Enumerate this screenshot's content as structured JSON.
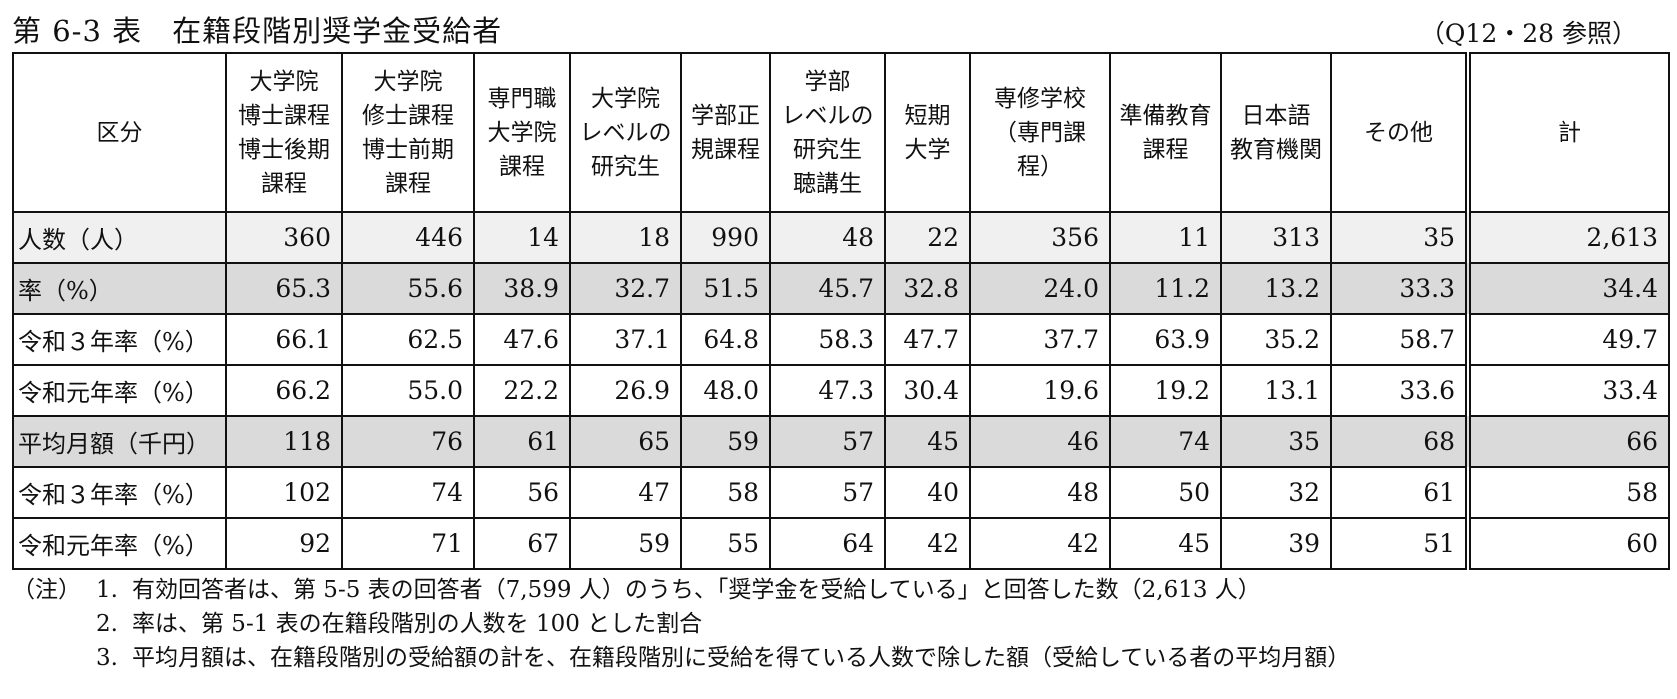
{
  "title": "第 6-3 表　在籍段階別奨学金受給者",
  "reference": "（Q12・28 参照）",
  "table": {
    "headers": [
      "区分",
      "大学院\n博士課程\n博士後期\n課程",
      "大学院\n修士課程\n博士前期\n課程",
      "専門職\n大学院\n課程",
      "大学院\nレベルの\n研究生",
      "学部正\n規課程",
      "学部\nレベルの\n研究生\n聴講生",
      "短期\n大学",
      "専修学校\n（専門課\n程）",
      "準備教育\n課程",
      "日本語\n教育機関",
      "その他",
      "計"
    ],
    "rows": [
      {
        "label": "人数（人）",
        "values": [
          "360",
          "446",
          "14",
          "18",
          "990",
          "48",
          "22",
          "356",
          "11",
          "313",
          "35",
          "2,613"
        ]
      },
      {
        "label": "率（%）",
        "values": [
          "65.3",
          "55.6",
          "38.9",
          "32.7",
          "51.5",
          "45.7",
          "32.8",
          "24.0",
          "11.2",
          "13.2",
          "33.3",
          "34.4"
        ]
      },
      {
        "label": "令和３年率（%）",
        "values": [
          "66.1",
          "62.5",
          "47.6",
          "37.1",
          "64.8",
          "58.3",
          "47.7",
          "37.7",
          "63.9",
          "35.2",
          "58.7",
          "49.7"
        ]
      },
      {
        "label": "令和元年率（%）",
        "values": [
          "66.2",
          "55.0",
          "22.2",
          "26.9",
          "48.0",
          "47.3",
          "30.4",
          "19.6",
          "19.2",
          "13.1",
          "33.6",
          "33.4"
        ]
      },
      {
        "label": "平均月額（千円）",
        "values": [
          "118",
          "76",
          "61",
          "65",
          "59",
          "57",
          "45",
          "46",
          "74",
          "35",
          "68",
          "66"
        ]
      },
      {
        "label": "令和３年率（%）",
        "values": [
          "102",
          "74",
          "56",
          "47",
          "58",
          "57",
          "40",
          "48",
          "50",
          "32",
          "61",
          "58"
        ]
      },
      {
        "label": "令和元年率（%）",
        "values": [
          "92",
          "71",
          "67",
          "59",
          "55",
          "64",
          "42",
          "42",
          "45",
          "39",
          "51",
          "60"
        ]
      }
    ]
  },
  "notes": {
    "head": "（注）",
    "items": [
      {
        "num": "1.",
        "text": "有効回答者は、第 5-5 表の回答者（7,599 人）のうち、「奨学金を受給している」と回答した数（2,613 人）"
      },
      {
        "num": "2.",
        "text": "率は、第 5-1 表の在籍段階別の人数を 100 とした割合"
      },
      {
        "num": "3.",
        "text": "平均月額は、在籍段階別の受給額の計を、在籍段階別に受給を得ている人数で除した額（受給している者の平均月額）"
      }
    ]
  }
}
